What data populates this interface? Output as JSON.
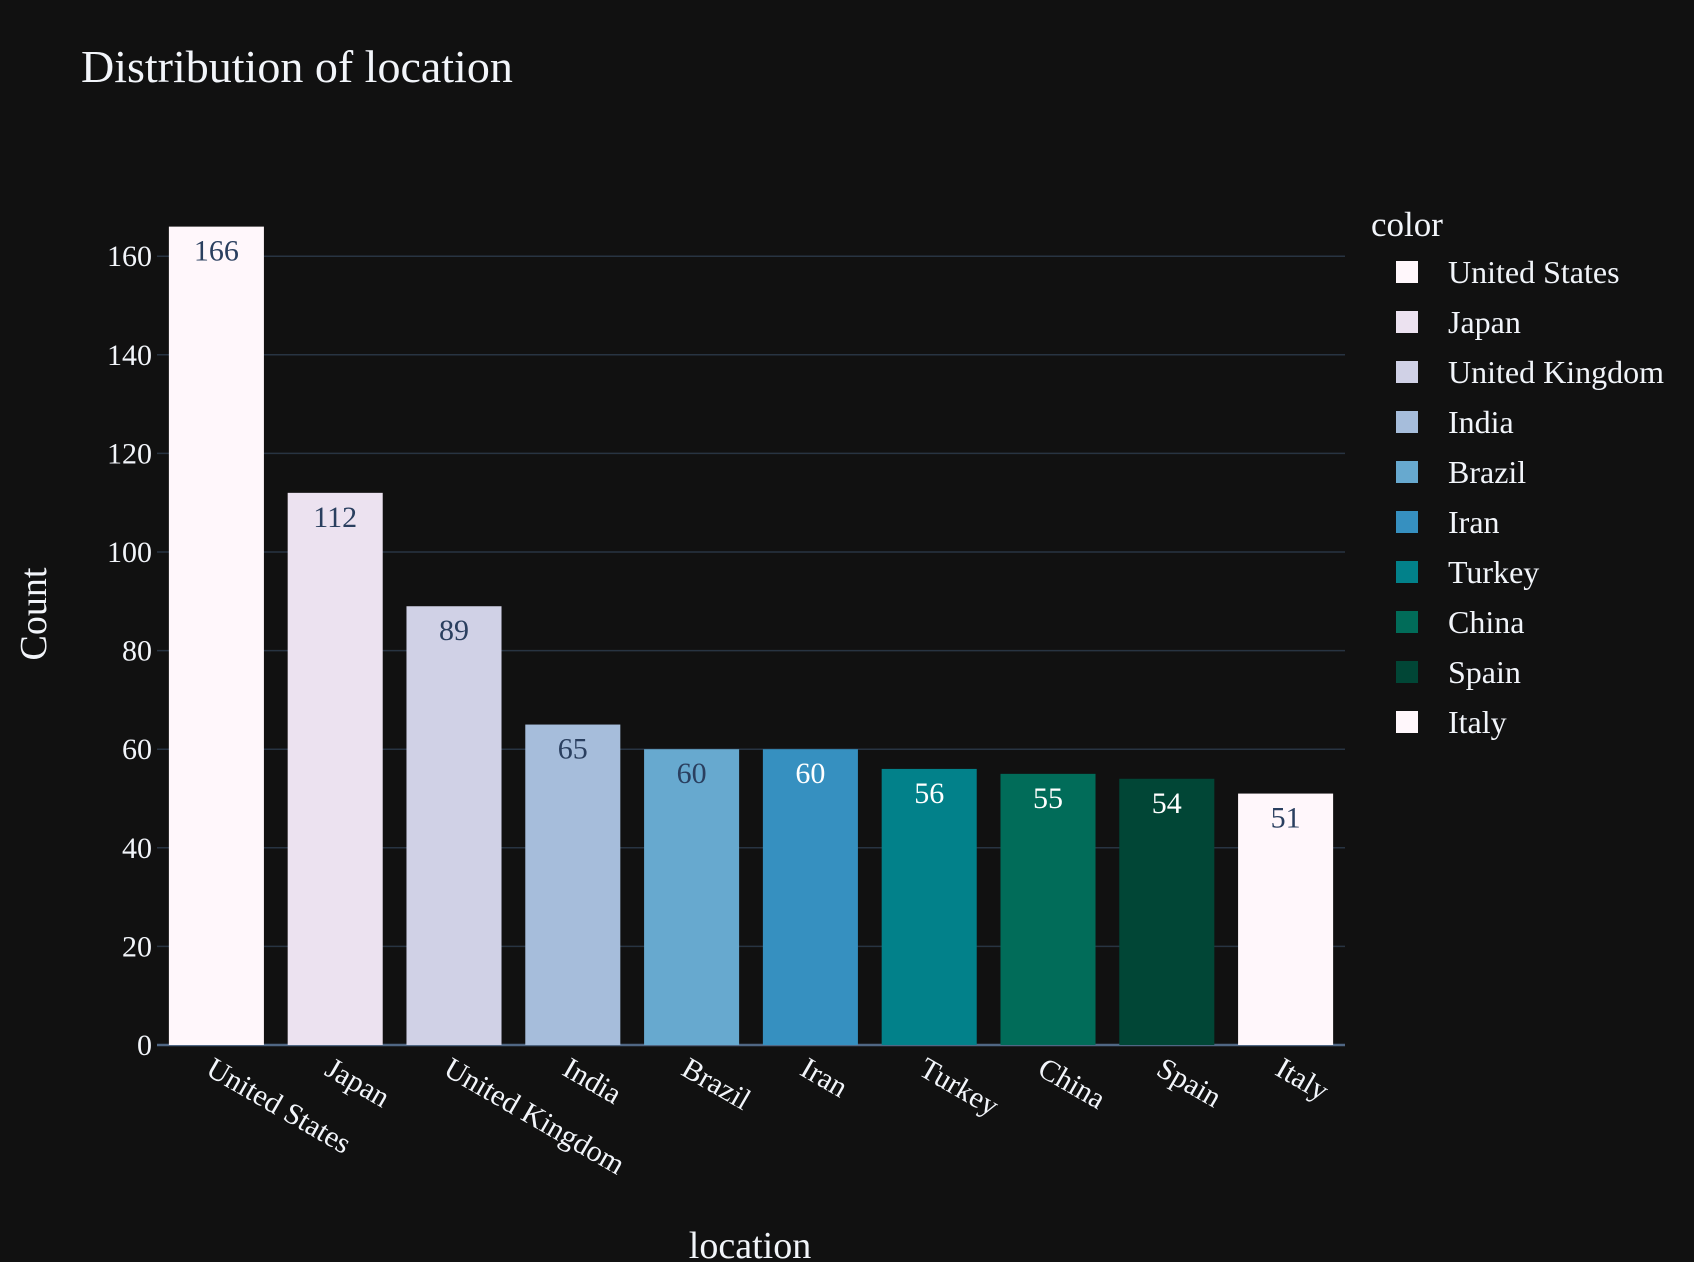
{
  "chart_data": {
    "type": "bar",
    "title": "Distribution of location",
    "xlabel": "location",
    "ylabel": "Count",
    "categories": [
      "United States",
      "Japan",
      "United Kingdom",
      "India",
      "Brazil",
      "Iran",
      "Turkey",
      "China",
      "Spain",
      "Italy"
    ],
    "values": [
      166,
      112,
      89,
      65,
      60,
      60,
      56,
      55,
      54,
      51
    ],
    "colors": [
      "#fff7fb",
      "#ece2f0",
      "#d0d1e6",
      "#a6bddb",
      "#67a9cf",
      "#3690c0",
      "#02818a",
      "#016c59",
      "#014636",
      "#fff7fb"
    ],
    "label_colors": [
      "#2a3f5f",
      "#2a3f5f",
      "#2a3f5f",
      "#2a3f5f",
      "#2a3f5f",
      "#ffffff",
      "#ffffff",
      "#ffffff",
      "#ffffff",
      "#2a3f5f"
    ],
    "ylim": [
      0,
      166
    ],
    "yticks": [
      0,
      20,
      40,
      60,
      80,
      100,
      120,
      140,
      160
    ],
    "grid": true,
    "legend": {
      "title": "color",
      "placement": "right",
      "entries": [
        "United States",
        "Japan",
        "United Kingdom",
        "India",
        "Brazil",
        "Iran",
        "Turkey",
        "China",
        "Spain",
        "Italy"
      ]
    },
    "background": "#111111"
  }
}
